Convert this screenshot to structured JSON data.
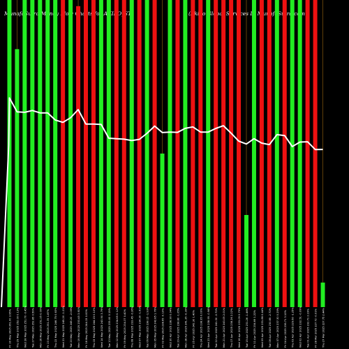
{
  "header": {
    "left_title": "MunafaSutra Money Flow Charts for AKIKO_ST",
    "right_title": "(Akiko Global Services L) MunafaSutra.com"
  },
  "colors": {
    "background": "#000000",
    "up": "#22ee22",
    "down": "#ee1111",
    "grid": "#a06a10",
    "line": "#ffffff",
    "label": "#ffffff"
  },
  "chart_data": {
    "type": "bar",
    "description_bars": "money flow volume bars, green = up, red = down",
    "categories": [
      "Fri 30 May 2025",
      "Thu 29 May 2025",
      "Wed 28 May 2025",
      "Tue 27 May 2025",
      "Mon 26 May 2025",
      "Fri 23 May 2025",
      "Thu 22 May 2025",
      "Wed 21 May 2025",
      "Tue 20 May 2025",
      "Mon 19 May 2025",
      "Fri 16 May 2025",
      "Thu 15 May 2025",
      "Wed 14 May 2025",
      "Tue 13 May 2025",
      "Mon 12 May 2025",
      "Fri 09 May 2025",
      "Thu 08 May 2025",
      "Wed 07 May 2025",
      "Tue 06 May 2025",
      "Mon 05 May 2025",
      "Fri 02 May 2025",
      "Wed 30 Apr 2025",
      "Tue 29 Apr 2025",
      "Mon 28 Apr 2025",
      "Fri 25 Apr 2025",
      "Thu 24 Apr 2025",
      "Wed 23 Apr 2025",
      "Tue 22 Apr 2025",
      "Mon 21 Apr 2025",
      "Thu 17 Apr 2025",
      "Wed 16 Apr 2025",
      "Tue 15 Apr 2025",
      "Fri 11 Apr 2025",
      "Wed 09 Apr 2025",
      "Tue 08 Apr 2025",
      "Mon 07 Apr 2025",
      "Fri 04 Apr 2025",
      "Thu 03 Apr 2025",
      "Wed 02 Apr 2025",
      "Tue 01 Apr 2025",
      "Fri 28 Mar 2025",
      "Thu 27 Mar 2025"
    ],
    "tick_labels": [
      "261.00 3.95%",
      "252.00 0.13%",
      "251.70 -0.45%",
      "252.85 0.59%",
      "251.35 0.00%",
      "251.35 1.87%",
      "246.75 0.63%",
      "245.20 -1.21%",
      "248.20 -2.08%",
      "253.45 3.81%",
      "244.15 0.00%",
      "244.15 0.10%",
      "243.90 3.79%",
      "235.00 0.15%",
      "234.65 0.12%",
      "234.37 0.40%",
      "233.45 -0.36%",
      "234.30 -1.61%",
      "238.15 -1.93%",
      "242.85 1.76%",
      "238.65 -0.10%",
      "238.90 0.04%",
      "238.80 -1.05%",
      "241.35 -0.39%",
      "242.30 1.40%",
      "238.95 0.00%",
      "238.95 -0.98%",
      "241.30 -0.72%",
      "243.05 2.01%",
      "238.26 2.22%",
      "233.09 0.79%",
      "231.26 -1.46%",
      "234.69 1.22%",
      "231.86 0.44%",
      "230.85 -2.72%",
      "237.30 0.25%",
      "236.71 3.10%",
      "229.60 -1.25%",
      "232.51 -0.09%",
      "232.71 2.19%",
      "227.72 -0.01%",
      "227.75 2.44%"
    ],
    "values": [
      100,
      84,
      100,
      100,
      100,
      100,
      100,
      100,
      100,
      98,
      100,
      100,
      100,
      100,
      100,
      100,
      100,
      100,
      100,
      100,
      50,
      100,
      100,
      100,
      100,
      100,
      100,
      100,
      100,
      100,
      100,
      30,
      100,
      100,
      100,
      100,
      100,
      100,
      100,
      100,
      100,
      8
    ],
    "directions": [
      "up",
      "up",
      "up",
      "up",
      "up",
      "up",
      "up",
      "down",
      "up",
      "down",
      "down",
      "down",
      "up",
      "up",
      "down",
      "down",
      "up",
      "down",
      "up",
      "down",
      "up",
      "up",
      "down",
      "up",
      "down",
      "down",
      "up",
      "down",
      "down",
      "down",
      "down",
      "up",
      "up",
      "down",
      "down",
      "up",
      "down",
      "up",
      "up",
      "down",
      "down",
      "up"
    ],
    "price": [
      261.0,
      252.0,
      251.7,
      252.85,
      251.35,
      251.35,
      246.75,
      245.2,
      248.2,
      253.45,
      244.15,
      244.15,
      243.9,
      235.0,
      234.65,
      234.37,
      233.45,
      234.3,
      238.15,
      242.85,
      238.65,
      238.9,
      238.8,
      241.35,
      242.3,
      238.95,
      238.95,
      241.3,
      243.05,
      238.26,
      233.09,
      231.26,
      234.69,
      231.86,
      230.85,
      237.3,
      236.71,
      229.6,
      232.51,
      232.71,
      227.72,
      227.75
    ],
    "xlabel": "",
    "ylabel": "",
    "grid": true,
    "legend": "none"
  }
}
